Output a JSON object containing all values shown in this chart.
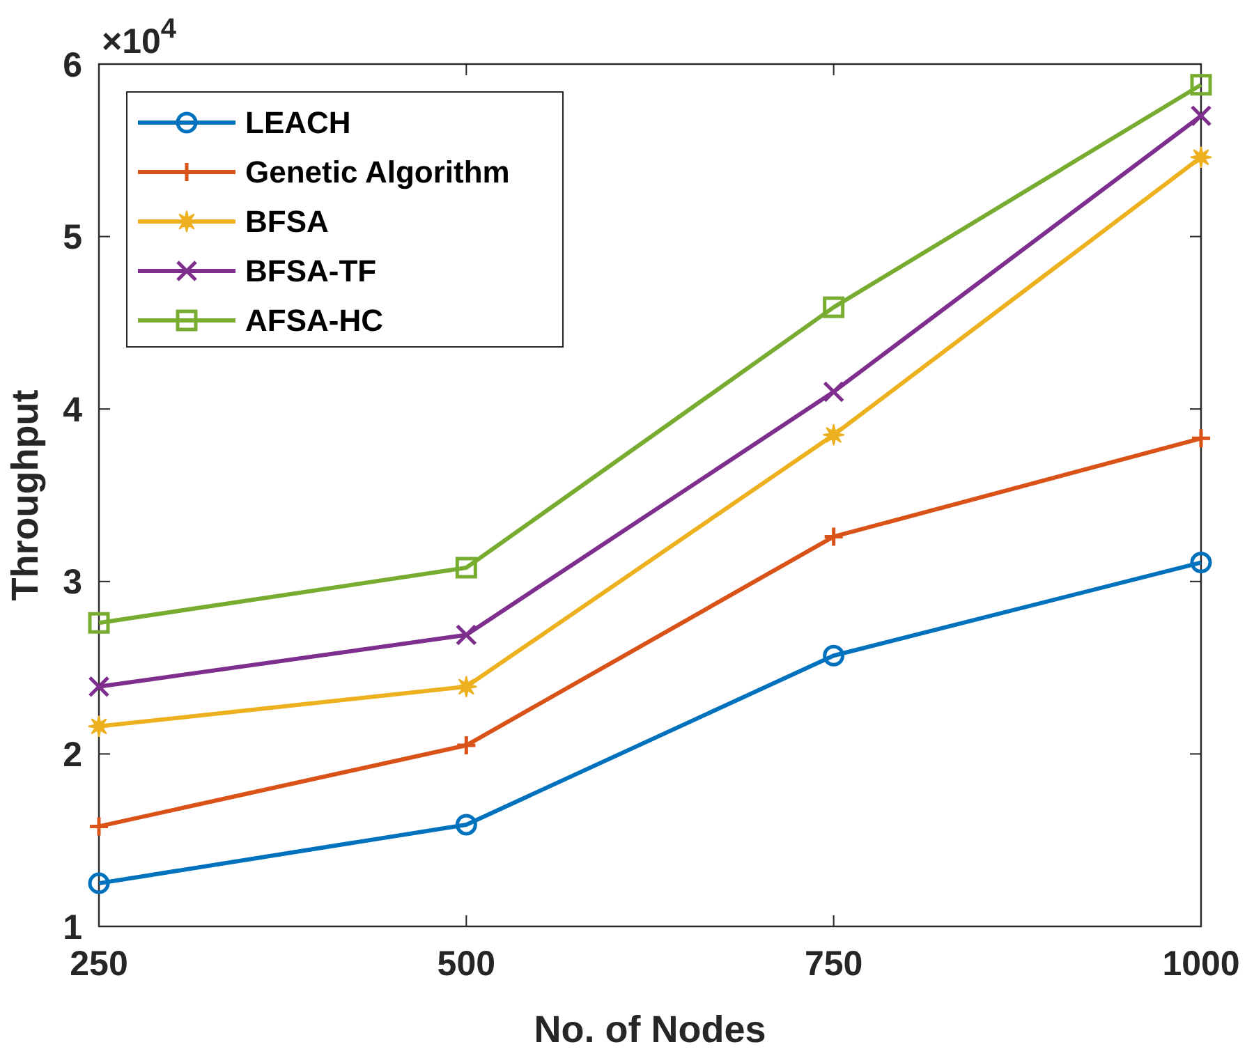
{
  "chart_data": {
    "type": "line",
    "xlabel": "No. of Nodes",
    "ylabel": "Throughput",
    "x": [
      250,
      500,
      750,
      1000
    ],
    "series": [
      {
        "name": "LEACH",
        "color": "#0072bd",
        "marker": "circle",
        "values": [
          1.25,
          1.59,
          2.57,
          3.11
        ]
      },
      {
        "name": "Genetic Algorithm",
        "color": "#d95319",
        "marker": "plus",
        "values": [
          1.58,
          2.05,
          3.26,
          3.83
        ]
      },
      {
        "name": "BFSA",
        "color": "#edb120",
        "marker": "star",
        "values": [
          2.16,
          2.39,
          3.85,
          5.46
        ]
      },
      {
        "name": "BFSA-TF",
        "color": "#7e2f8e",
        "marker": "cross",
        "values": [
          2.39,
          2.69,
          4.1,
          5.7
        ]
      },
      {
        "name": "AFSA-HC",
        "color": "#77ac30",
        "marker": "square",
        "values": [
          2.76,
          3.08,
          4.59,
          5.88
        ]
      }
    ],
    "xlim": [
      250,
      1000
    ],
    "xticks": [
      250,
      500,
      750,
      1000
    ],
    "ylim": [
      1,
      6
    ],
    "yticks": [
      1,
      2,
      3,
      4,
      5,
      6
    ],
    "annotations": [
      "×10$^{4}$"
    ],
    "legend": "top left",
    "grid": false,
    "line_style": "solid"
  }
}
